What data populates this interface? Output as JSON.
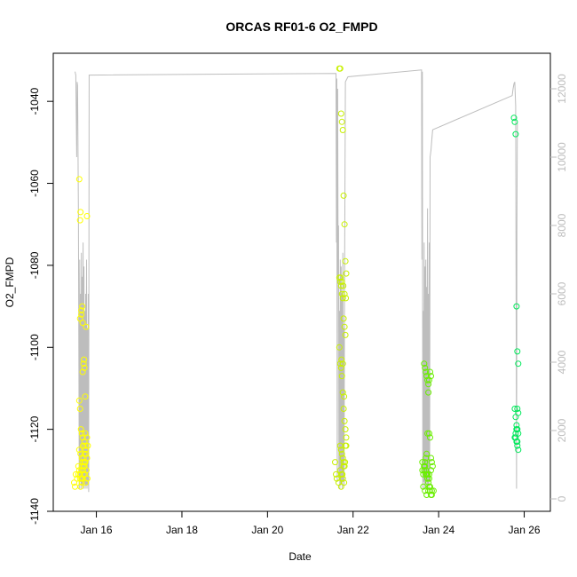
{
  "chart_data": {
    "type": "scatter",
    "title": "ORCAS RF01-6 O2_FMPD",
    "xlabel": "Date",
    "ylabel": "O2_FMPD",
    "xlim": [
      15.2,
      26.3
    ],
    "ylim": [
      -1140,
      -1030
    ],
    "y2lim": [
      0,
      12800
    ],
    "x_ticks": [
      {
        "value": 16,
        "label": "Jan 16"
      },
      {
        "value": 18,
        "label": "Jan 18"
      },
      {
        "value": 20,
        "label": "Jan 20"
      },
      {
        "value": 22,
        "label": "Jan 22"
      },
      {
        "value": 24,
        "label": "Jan 24"
      },
      {
        "value": 26,
        "label": "Jan 26"
      }
    ],
    "y_ticks": [
      -1140,
      -1120,
      -1100,
      -1080,
      -1060,
      -1040
    ],
    "y2_ticks": [
      0,
      2000,
      4000,
      6000,
      8000,
      10000,
      12000
    ],
    "grid": false,
    "colors": {
      "rf01": "#ffff00",
      "rf02": "#c8f000",
      "rf03": "#6aee00",
      "rf04": "#00e85a",
      "altitude": "#bdbdbd",
      "axis": "#000000",
      "axis_right": "#bdbdbd"
    },
    "series": [
      {
        "color_key": "rf01",
        "x": [
          15.48,
          15.5,
          15.52,
          15.55,
          15.58,
          15.6,
          15.62,
          15.63,
          15.65,
          15.67,
          15.68,
          15.7,
          15.72,
          15.74,
          15.76,
          15.78,
          15.6,
          15.62,
          15.64,
          15.66,
          15.68,
          15.7,
          15.72,
          15.74,
          15.6,
          15.62,
          15.65,
          15.68,
          15.7,
          15.73,
          15.75,
          15.77,
          15.79,
          15.6,
          15.63,
          15.66,
          15.69,
          15.72,
          15.75,
          15.78,
          15.65,
          15.68,
          15.7,
          15.72,
          15.74,
          15.76,
          15.63,
          15.66,
          15.69,
          15.72,
          15.75,
          15.62,
          15.65,
          15.68,
          15.71,
          15.58,
          15.62,
          15.66,
          15.7,
          15.74,
          15.78,
          15.8
        ],
        "y": [
          -1133,
          -1134,
          -1131,
          -1132,
          -1129,
          -1059,
          -1069,
          -1067,
          -1091,
          -1090,
          -1094,
          -1104,
          -1105,
          -1112,
          -1095,
          -1068,
          -1113,
          -1115,
          -1120,
          -1121,
          -1122,
          -1124,
          -1126,
          -1128,
          -1130,
          -1131,
          -1132,
          -1128,
          -1129,
          -1131,
          -1133,
          -1130,
          -1132,
          -1125,
          -1126,
          -1127,
          -1124,
          -1123,
          -1125,
          -1127,
          -1130,
          -1132,
          -1131,
          -1129,
          -1128,
          -1126,
          -1134,
          -1133,
          -1130,
          -1128,
          -1124,
          -1093,
          -1092,
          -1106,
          -1103,
          -1131,
          -1132,
          -1129,
          -1127,
          -1121,
          -1122,
          -1124
        ]
      },
      {
        "color_key": "rf02",
        "x": [
          21.58,
          21.6,
          21.62,
          21.66,
          21.68,
          21.7,
          21.72,
          21.74,
          21.76,
          21.78,
          21.8,
          21.82,
          21.84,
          21.68,
          21.7,
          21.72,
          21.74,
          21.76,
          21.78,
          21.8,
          21.82,
          21.68,
          21.7,
          21.72,
          21.74,
          21.76,
          21.78,
          21.8,
          21.82,
          21.84,
          21.7,
          21.72,
          21.74,
          21.76,
          21.78,
          21.8,
          21.7,
          21.73,
          21.76,
          21.79,
          21.72,
          21.75,
          21.78,
          21.81,
          21.84,
          21.71,
          21.74,
          21.77,
          21.8,
          21.83,
          21.73,
          21.76,
          21.79,
          21.82
        ],
        "y": [
          -1128,
          -1131,
          -1132,
          -1133,
          -1032,
          -1032,
          -1043,
          -1045,
          -1047,
          -1063,
          -1070,
          -1079,
          -1082,
          -1083,
          -1084,
          -1085,
          -1087,
          -1088,
          -1093,
          -1095,
          -1097,
          -1100,
          -1104,
          -1105,
          -1107,
          -1111,
          -1115,
          -1118,
          -1120,
          -1122,
          -1124,
          -1125,
          -1126,
          -1127,
          -1128,
          -1129,
          -1130,
          -1131,
          -1132,
          -1133,
          -1134,
          -1131,
          -1129,
          -1128,
          -1124,
          -1083,
          -1084,
          -1085,
          -1087,
          -1088,
          -1103,
          -1104,
          -1112,
          -1124
        ]
      },
      {
        "color_key": "rf03",
        "x": [
          23.62,
          23.64,
          23.66,
          23.68,
          23.7,
          23.72,
          23.74,
          23.76,
          23.78,
          23.8,
          23.82,
          23.66,
          23.68,
          23.7,
          23.72,
          23.74,
          23.76,
          23.78,
          23.8,
          23.82,
          23.84,
          23.68,
          23.7,
          23.72,
          23.74,
          23.76,
          23.78,
          23.8,
          23.82,
          23.84,
          23.66,
          23.7,
          23.74,
          23.78,
          23.82,
          23.86,
          23.62,
          23.66,
          23.7,
          23.74,
          23.78,
          23.64,
          23.68,
          23.72,
          23.76,
          23.8,
          23.84,
          23.88
        ],
        "y": [
          -1130,
          -1131,
          -1129,
          -1128,
          -1127,
          -1126,
          -1121,
          -1111,
          -1108,
          -1106,
          -1107,
          -1104,
          -1105,
          -1106,
          -1107,
          -1108,
          -1109,
          -1121,
          -1122,
          -1127,
          -1128,
          -1129,
          -1130,
          -1131,
          -1132,
          -1133,
          -1134,
          -1135,
          -1136,
          -1135,
          -1130,
          -1131,
          -1132,
          -1131,
          -1130,
          -1129,
          -1128,
          -1129,
          -1130,
          -1131,
          -1132,
          -1134,
          -1135,
          -1136,
          -1135,
          -1134,
          -1136,
          -1135
        ]
      },
      {
        "color_key": "rf04",
        "x": [
          25.76,
          25.78,
          25.8,
          25.82,
          25.84,
          25.86,
          25.78,
          25.8,
          25.82,
          25.84,
          25.86,
          25.78,
          25.8,
          25.82,
          25.84,
          25.86,
          25.8,
          25.82,
          25.84,
          25.86,
          25.82,
          25.84
        ],
        "y": [
          -1044,
          -1045,
          -1048,
          -1090,
          -1101,
          -1104,
          -1115,
          -1117,
          -1120,
          -1120,
          -1121,
          -1122,
          -1122,
          -1123,
          -1124,
          -1125,
          -1121,
          -1119,
          -1115,
          -1116,
          -1120,
          -1123
        ]
      }
    ],
    "altitude_series": {
      "color_key": "altitude",
      "axis": "right",
      "x": [
        15.5,
        15.52,
        15.54,
        15.55,
        15.56,
        15.58,
        15.6,
        15.61,
        15.62,
        15.63,
        15.64,
        15.65,
        15.66,
        15.67,
        15.68,
        15.69,
        15.7,
        15.71,
        15.72,
        15.73,
        15.74,
        15.75,
        15.76,
        15.77,
        15.78,
        15.79,
        15.8,
        15.81,
        15.82,
        15.83,
        21.6,
        21.61,
        21.62,
        21.63,
        21.64,
        21.65,
        21.66,
        21.67,
        21.68,
        21.69,
        21.7,
        21.71,
        21.72,
        21.73,
        21.74,
        21.75,
        21.76,
        21.77,
        21.78,
        21.79,
        21.8,
        21.82,
        21.84,
        21.86,
        21.88,
        23.6,
        23.61,
        23.62,
        23.63,
        23.64,
        23.65,
        23.66,
        23.67,
        23.68,
        23.69,
        23.7,
        23.71,
        23.72,
        23.73,
        23.74,
        23.75,
        23.76,
        23.77,
        23.78,
        23.79,
        23.8,
        23.82,
        23.84,
        23.86,
        25.72,
        25.74,
        25.76,
        25.78,
        25.8,
        25.82,
        25.83,
        25.84
      ],
      "y": [
        12500,
        12400,
        10000,
        12200,
        12100,
        8500,
        300,
        7000,
        500,
        6000,
        300,
        7200,
        400,
        6500,
        300,
        7500,
        300,
        6800,
        500,
        5500,
        300,
        6000,
        400,
        7000,
        300,
        5000,
        400,
        6000,
        200,
        12400,
        12450,
        7500,
        12300,
        500,
        12000,
        6500,
        8000,
        600,
        5500,
        300,
        7000,
        400,
        6800,
        500,
        6000,
        300,
        7200,
        500,
        5000,
        400,
        6000,
        12200,
        12250,
        12300,
        12350,
        12550,
        7000,
        12500,
        300,
        5500,
        500,
        7500,
        300,
        6800,
        400,
        7000,
        500,
        6200,
        300,
        8500,
        400,
        6000,
        300,
        7500,
        500,
        10000,
        10200,
        10500,
        10800,
        11800,
        12000,
        12150,
        12200,
        11500,
        300,
        8000,
        11000
      ]
    }
  }
}
